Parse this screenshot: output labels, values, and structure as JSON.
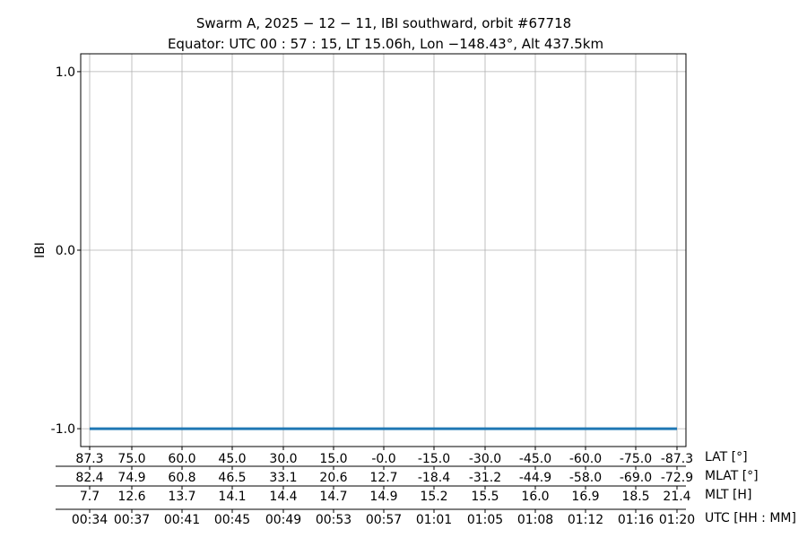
{
  "chart_data": {
    "type": "line",
    "title_line1": "Swarm A,  2025 − 12 − 11,  IBI southward,  orbit #67718",
    "title_line2": "Equator:  UTC 00 : 57 : 15,  LT 15.06h,  Lon  −148.43°,  Alt 437.5km",
    "ylabel": "IBI",
    "ylim": [
      -1.1,
      1.1
    ],
    "yticks": [
      1.0,
      0.0,
      -1.0
    ],
    "ytick_labels": [
      "1.0",
      "0.0",
      "-1.0"
    ],
    "grid": true,
    "line_color": "#1f77b4",
    "series": [
      {
        "x": [
          "00:34",
          "01:20"
        ],
        "values": [
          -1.0,
          -1.0
        ]
      }
    ],
    "xaxis_rows": [
      {
        "label": "LAT [°]",
        "ticks": [
          "87.3",
          "75.0",
          "60.0",
          "45.0",
          "30.0",
          "15.0",
          "-0.0",
          "-15.0",
          "-30.0",
          "-45.0",
          "-60.0",
          "-75.0",
          "-87.3"
        ]
      },
      {
        "label": "MLAT [°]",
        "ticks": [
          "82.4",
          "74.9",
          "60.8",
          "46.5",
          "33.1",
          "20.6",
          "12.7",
          "-18.4",
          "-31.2",
          "-44.9",
          "-58.0",
          "-69.0",
          "-72.9"
        ]
      },
      {
        "label": "MLT [H]",
        "ticks": [
          "7.7",
          "12.6",
          "13.7",
          "14.1",
          "14.4",
          "14.7",
          "14.9",
          "15.2",
          "15.5",
          "16.0",
          "16.9",
          "18.5",
          "21.4"
        ]
      },
      {
        "label": "UTC [HH : MM]",
        "ticks": [
          "00:34",
          "00:37",
          "00:41",
          "00:45",
          "00:49",
          "00:53",
          "00:57",
          "01:01",
          "01:05",
          "01:08",
          "01:12",
          "01:16",
          "01:20"
        ]
      }
    ]
  }
}
